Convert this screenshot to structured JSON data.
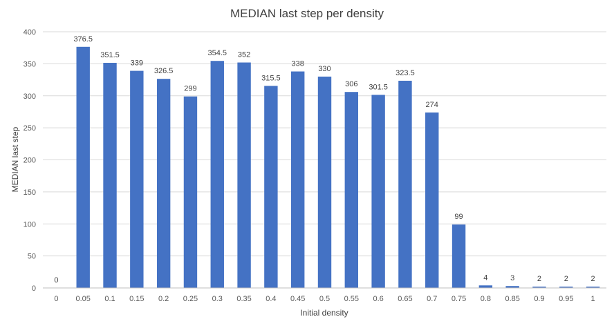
{
  "chart_data": {
    "type": "bar",
    "title": "MEDIAN last step per density",
    "xlabel": "Initial density",
    "ylabel": "MEDIAN last step",
    "ylim": [
      0,
      400
    ],
    "yticks": [
      0,
      50,
      100,
      150,
      200,
      250,
      300,
      350,
      400
    ],
    "grid": true,
    "legend": "none",
    "bar_color": "#4472c4",
    "categories": [
      "0",
      "0.05",
      "0.1",
      "0.15",
      "0.2",
      "0.25",
      "0.3",
      "0.35",
      "0.4",
      "0.45",
      "0.5",
      "0.55",
      "0.6",
      "0.65",
      "0.7",
      "0.75",
      "0.8",
      "0.85",
      "0.9",
      "0.95",
      "1"
    ],
    "values": [
      0,
      376.5,
      351.5,
      339,
      326.5,
      299,
      354.5,
      352,
      315.5,
      338,
      330,
      306,
      301.5,
      323.5,
      274,
      99,
      4,
      3,
      2,
      2,
      2
    ],
    "data_labels": [
      "0",
      "376.5",
      "351.5",
      "339",
      "326.5",
      "299",
      "354.5",
      "352",
      "315.5",
      "338",
      "330",
      "306",
      "301.5",
      "323.5",
      "274",
      "99",
      "4",
      "3",
      "2",
      "2",
      "2"
    ]
  }
}
